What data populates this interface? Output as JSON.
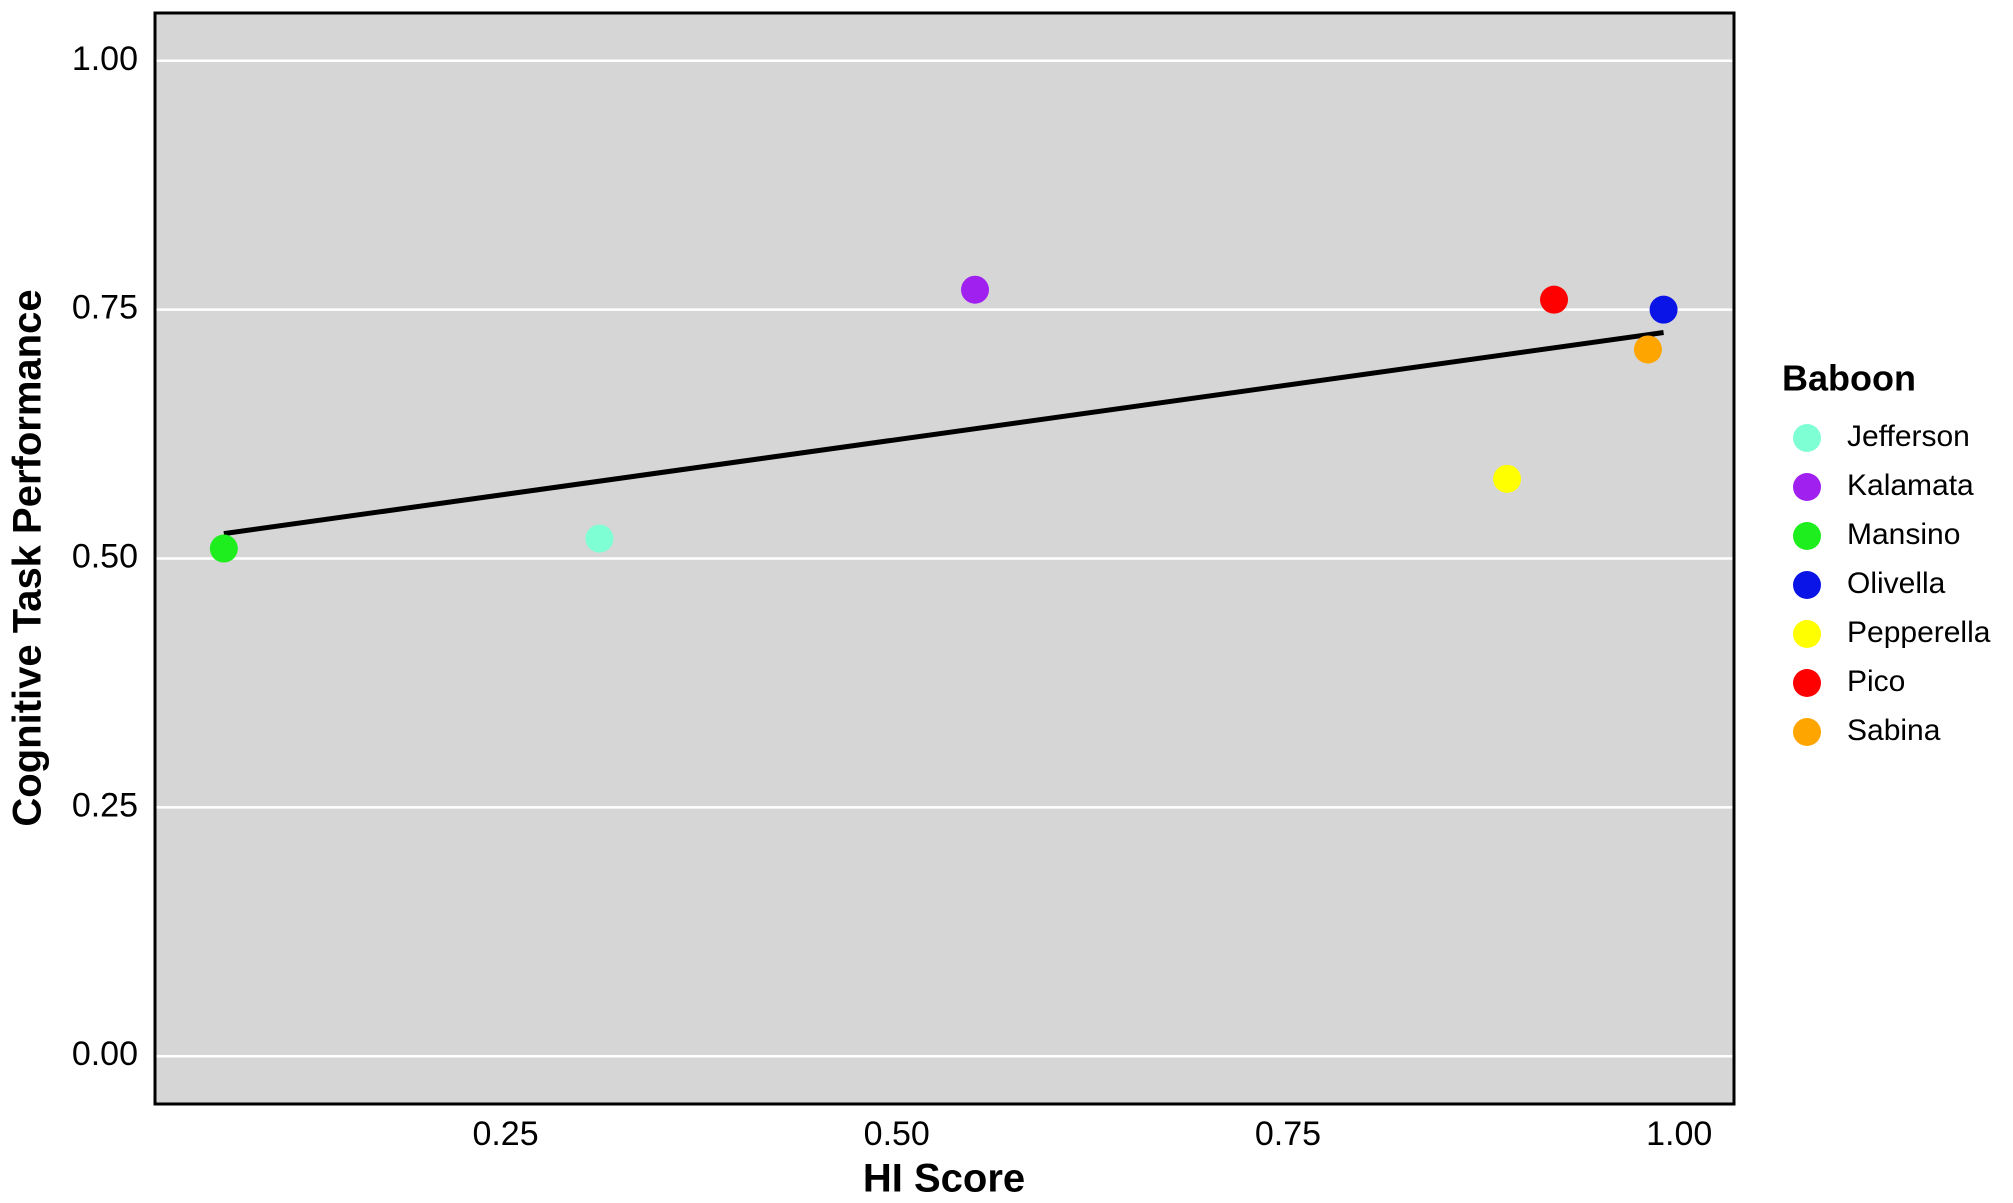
{
  "chart_data": {
    "type": "scatter",
    "xlabel": "HI Score",
    "ylabel": "Cognitive Task Performance",
    "legend_title": "Baboon",
    "legend": "right",
    "xlim": [
      0.026,
      1.035
    ],
    "xticks": [
      {
        "value": 0.25,
        "label": "0.25"
      },
      {
        "value": 0.5,
        "label": "0.50"
      },
      {
        "value": 0.75,
        "label": "0.75"
      },
      {
        "value": 1.0,
        "label": "1.00"
      }
    ],
    "ylim": [
      -0.048,
      1.048
    ],
    "yticks": [
      {
        "value": 0.0,
        "label": "0.00"
      },
      {
        "value": 0.25,
        "label": "0.25"
      },
      {
        "value": 0.5,
        "label": "0.50"
      },
      {
        "value": 0.75,
        "label": "0.75"
      },
      {
        "value": 1.0,
        "label": "1.00"
      }
    ],
    "grid": "y",
    "series": [
      {
        "name": "Jefferson",
        "color": "#7fffd4",
        "x": [
          0.31
        ],
        "y": [
          0.52
        ]
      },
      {
        "name": "Kalamata",
        "color": "#a020f0",
        "x": [
          0.55
        ],
        "y": [
          0.77
        ]
      },
      {
        "name": "Mansino",
        "color": "#1eee1e",
        "x": [
          0.07
        ],
        "y": [
          0.51
        ]
      },
      {
        "name": "Olivella",
        "color": "#0a14e6",
        "x": [
          0.99
        ],
        "y": [
          0.75
        ]
      },
      {
        "name": "Pepperella",
        "color": "#ffff00",
        "x": [
          0.89
        ],
        "y": [
          0.58
        ]
      },
      {
        "name": "Pico",
        "color": "#ff0000",
        "x": [
          0.92
        ],
        "y": [
          0.76
        ]
      },
      {
        "name": "Sabina",
        "color": "#ffa500",
        "x": [
          0.98
        ],
        "y": [
          0.71
        ]
      }
    ],
    "trendline": {
      "color": "#000000",
      "x": [
        0.07,
        0.99
      ],
      "y": [
        0.525,
        0.727
      ]
    }
  }
}
